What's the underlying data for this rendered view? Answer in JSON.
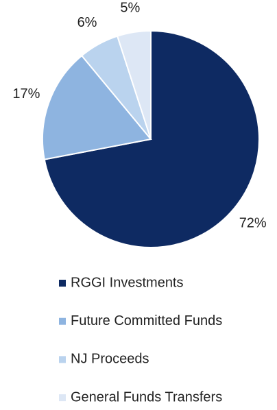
{
  "chart_data": {
    "type": "pie",
    "categories": [
      "RGGI Investments",
      "Future Committed Funds",
      "NJ Proceeds",
      "General Funds Transfers"
    ],
    "values": [
      72,
      17,
      6,
      5
    ],
    "value_labels": [
      "72%",
      "17%",
      "6%",
      "5%"
    ],
    "colors": [
      "#0e2a62",
      "#8eb4e0",
      "#bad3ee",
      "#dde7f5"
    ],
    "legend": "bottom"
  }
}
